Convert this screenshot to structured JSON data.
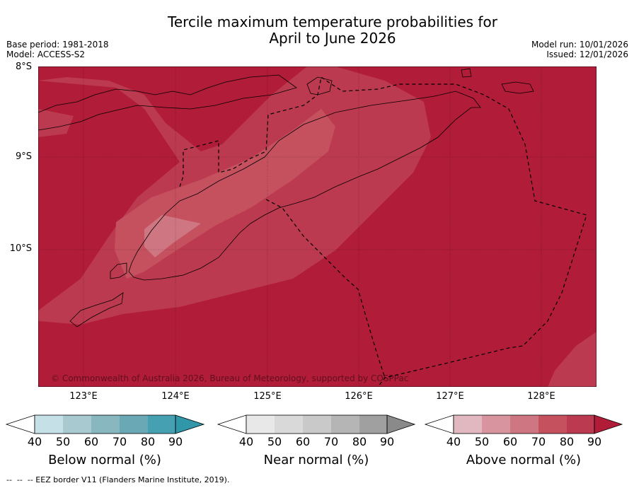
{
  "title": {
    "line1": "Tercile maximum temperature probabilities for",
    "line2": "April to June 2026"
  },
  "meta": {
    "base_period": "Base period: 1981-2018",
    "model": "Model: ACCESS-S2",
    "model_run": "Model run: 10/01/2026",
    "issued": "Issued: 12/01/2026"
  },
  "map": {
    "lat_labels": [
      "8°S",
      "9°S",
      "10°S"
    ],
    "lon_labels": [
      "123°E",
      "124°E",
      "125°E",
      "126°E",
      "127°E",
      "128°E"
    ],
    "copyright": "© Commonwealth of Australia 2026, Bureau of Meteorology, supported by COSPPac",
    "colors": {
      "above_90": "#b11c38",
      "above_80": "#bc3a4f",
      "above_70": "#c5515f",
      "above_60": "#cf7683"
    }
  },
  "legend": {
    "below": {
      "label": "Below normal (%)",
      "ticks": [
        "40",
        "50",
        "60",
        "70",
        "80",
        "90"
      ],
      "colors": [
        "#c6e0e7",
        "#a8c9cf",
        "#89b7c0",
        "#6aa8b5",
        "#45a0b1",
        "#2f97a8"
      ]
    },
    "near": {
      "label": "Near normal (%)",
      "ticks": [
        "40",
        "50",
        "60",
        "70",
        "80",
        "90"
      ],
      "colors": [
        "#e8e8e8",
        "#d9d9d9",
        "#c9c9c9",
        "#b5b5b5",
        "#a0a0a0",
        "#8a8a8a"
      ]
    },
    "above": {
      "label": "Above normal (%)",
      "ticks": [
        "40",
        "50",
        "60",
        "70",
        "80",
        "90"
      ],
      "colors": [
        "#e1b8c0",
        "#d8959f",
        "#cf7683",
        "#c5515f",
        "#bc3a4f",
        "#b11c38"
      ]
    }
  },
  "footer": "--  --  -- EEZ border V11 (Flanders Marine Institute, 2019)."
}
